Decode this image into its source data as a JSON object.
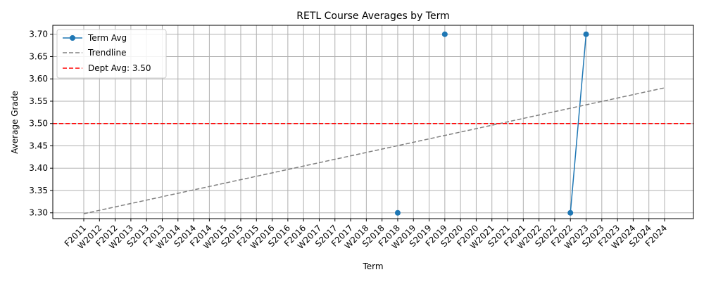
{
  "chart_data": {
    "type": "line",
    "title": "RETL Course Averages by Term",
    "xlabel": "Term",
    "ylabel": "Average Grade",
    "categories": [
      "F2011",
      "W2012",
      "F2012",
      "W2013",
      "S2013",
      "F2013",
      "W2014",
      "S2014",
      "F2014",
      "W2015",
      "S2015",
      "F2015",
      "W2016",
      "S2016",
      "F2016",
      "W2017",
      "S2017",
      "F2017",
      "W2018",
      "S2018",
      "F2018",
      "W2019",
      "S2019",
      "F2019",
      "S2020",
      "F2020",
      "W2021",
      "S2021",
      "F2021",
      "W2022",
      "S2022",
      "F2022",
      "W2023",
      "S2023",
      "F2023",
      "W2024",
      "S2024",
      "F2024"
    ],
    "yticks": [
      "3.30",
      "3.35",
      "3.40",
      "3.45",
      "3.50",
      "3.55",
      "3.60",
      "3.65",
      "3.70"
    ],
    "ylim": [
      3.287,
      3.72
    ],
    "grid": true,
    "legend_position": "top-left",
    "series": [
      {
        "name": "Term Avg",
        "color": "#1f77b4",
        "style": "line-marker",
        "segments": [
          [
            {
              "x": "F2018",
              "y": 3.3
            }
          ],
          [
            {
              "x": "F2019",
              "y": 3.7
            }
          ],
          [
            {
              "x": "F2022",
              "y": 3.3
            },
            {
              "x": "W2023",
              "y": 3.7
            }
          ]
        ]
      },
      {
        "name": "Trendline",
        "color": "#808080",
        "style": "dashed",
        "points": [
          {
            "x": "F2011",
            "y": 3.298
          },
          {
            "x": "F2024",
            "y": 3.58
          }
        ]
      },
      {
        "name": "Dept Avg: 3.50",
        "color": "#ff0000",
        "style": "dashed-hline",
        "y": 3.5
      }
    ]
  }
}
